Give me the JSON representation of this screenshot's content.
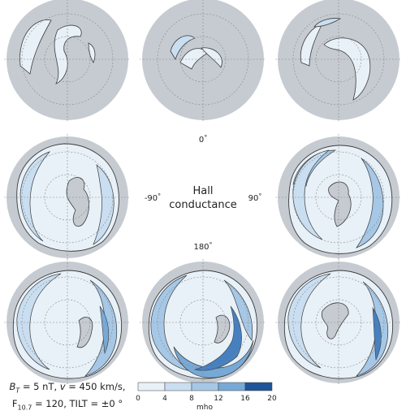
{
  "center_label": {
    "title_line1": "Hall",
    "title_line2": "conductance",
    "mlt_top": "0",
    "mlt_bottom": "180",
    "mlt_left": "-90",
    "mlt_right": "90",
    "degree_symbol": "°"
  },
  "colorbar": {
    "unit_label": "mho",
    "ticks": [
      "0",
      "4",
      "8",
      "12",
      "16",
      "20"
    ],
    "colors": [
      "#e8f1f8",
      "#c9def0",
      "#a6c8e6",
      "#78a9d6",
      "#4680bf",
      "#1f5597"
    ]
  },
  "caption": {
    "line1_B": "B",
    "line1_Bsub": "T",
    "line1_rest": " = 5 nT, ",
    "line1_v": "v",
    "line1_v_rest": " = 450 km/s,",
    "line2_F": "F",
    "line2_Fsub": "10.7",
    "line2_rest": " = 120, TILT = ±0 °"
  },
  "colors": {
    "disk_background": "#c6cbd2",
    "outline": "#3c3c3c",
    "grid": "#888888"
  }
}
